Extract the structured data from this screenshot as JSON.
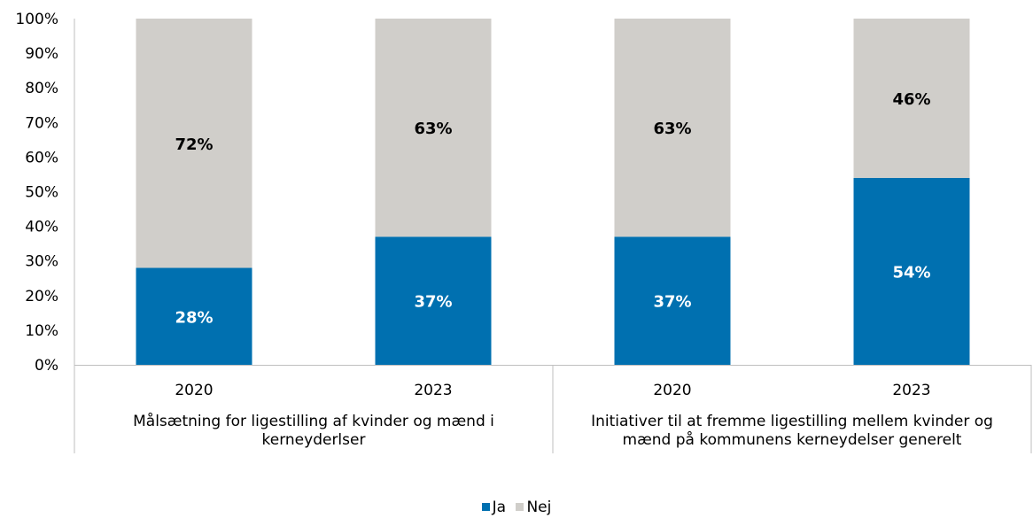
{
  "chart_data": {
    "type": "bar",
    "stacked": true,
    "title": "",
    "xlabel": "",
    "ylabel": "",
    "ylim": [
      0,
      100
    ],
    "y_ticks": [
      "0%",
      "10%",
      "20%",
      "30%",
      "40%",
      "50%",
      "60%",
      "70%",
      "80%",
      "90%",
      "100%"
    ],
    "groups": [
      {
        "label_lines": [
          "Målsætning for ligestilling af kvinder og mænd i",
          "kerneyderlser"
        ],
        "categories": [
          "2020",
          "2023"
        ]
      },
      {
        "label_lines": [
          "Initiativer til at fremme ligestilling mellem kvinder og",
          "mænd på kommunens kerneydelser generelt"
        ],
        "categories": [
          "2020",
          "2023"
        ]
      }
    ],
    "series": [
      {
        "name": "Ja",
        "color": "#0070B0",
        "values": [
          28,
          37,
          37,
          54
        ],
        "labels": [
          "28%",
          "37%",
          "37%",
          "54%"
        ],
        "label_color": "#ffffff"
      },
      {
        "name": "Nej",
        "color": "#D0CECA",
        "values": [
          72,
          63,
          63,
          46
        ],
        "labels": [
          "72%",
          "63%",
          "63%",
          "46%"
        ],
        "label_color": "#000000"
      }
    ],
    "grid": false,
    "legend_position": "bottom"
  }
}
